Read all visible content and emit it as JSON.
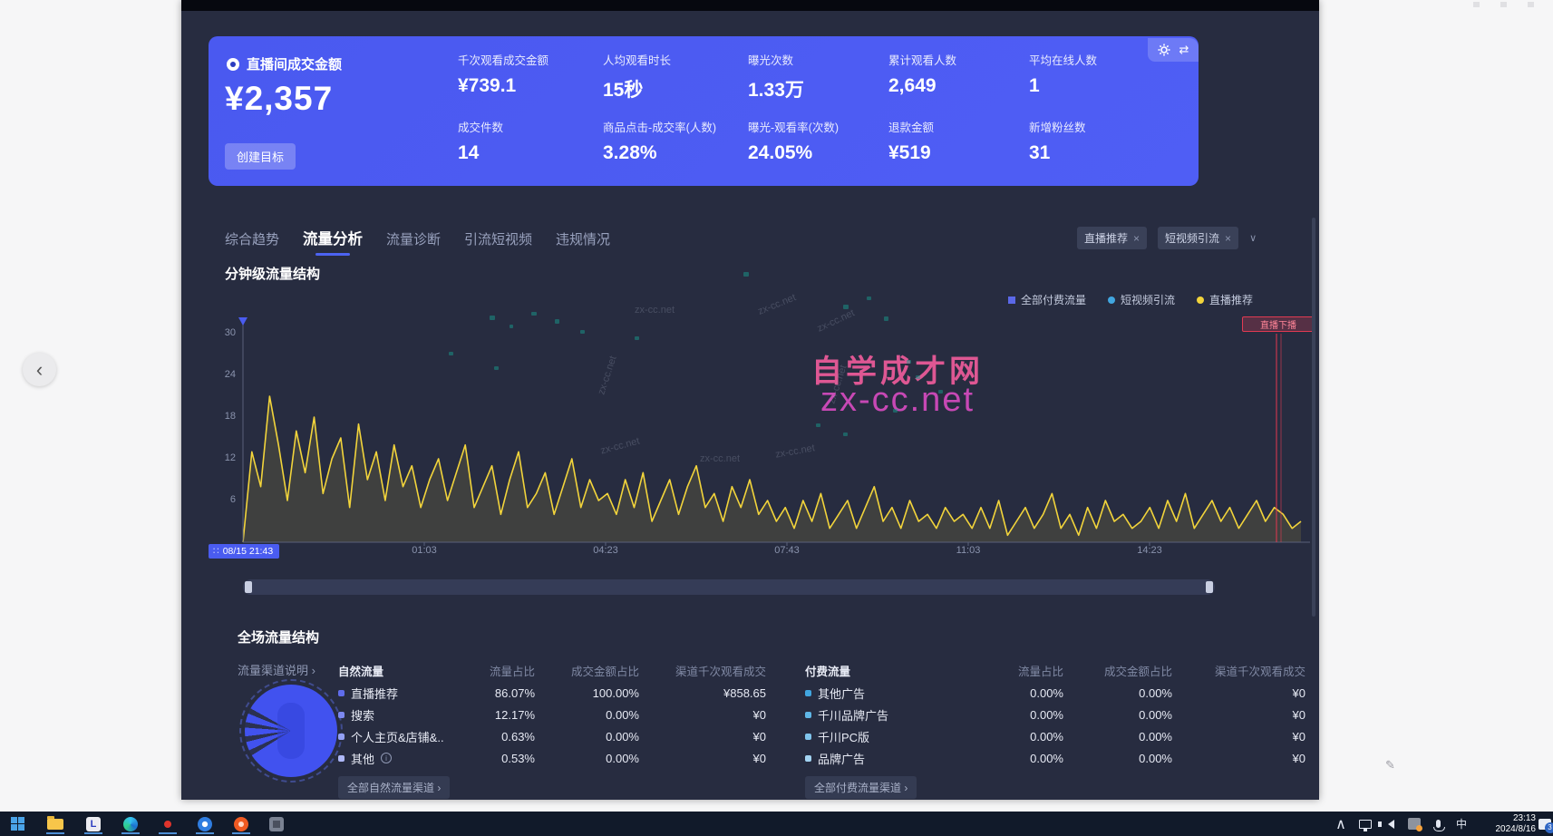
{
  "ui": {
    "chevron_right": "›",
    "chevron_down": "∨",
    "chevron_up": "∧",
    "close": "×",
    "back": "‹",
    "start_badge_icon": "∷"
  },
  "kpi": {
    "title": "直播间成交金额",
    "value": "¥2,357",
    "goal_button": "创建目标",
    "metrics": [
      {
        "label": "千次观看成交金额",
        "value": "¥739.1"
      },
      {
        "label": "人均观看时长",
        "value": "15秒"
      },
      {
        "label": "曝光次数",
        "value": "1.33万"
      },
      {
        "label": "累计观看人数",
        "value": "2,649"
      },
      {
        "label": "平均在线人数",
        "value": "1"
      },
      {
        "label": "成交件数",
        "value": "14"
      },
      {
        "label": "商品点击-成交率(人数)",
        "value": "3.28%"
      },
      {
        "label": "曝光-观看率(次数)",
        "value": "24.05%"
      },
      {
        "label": "退款金额",
        "value": "¥519"
      },
      {
        "label": "新增粉丝数",
        "value": "31"
      }
    ]
  },
  "tabs": [
    {
      "label": "综合趋势",
      "active": false
    },
    {
      "label": "流量分析",
      "active": true
    },
    {
      "label": "流量诊断",
      "active": false
    },
    {
      "label": "引流短视频",
      "active": false
    },
    {
      "label": "违规情况",
      "active": false
    }
  ],
  "filters": {
    "tag1": "直播推荐",
    "tag2": "短视频引流"
  },
  "minute_section": {
    "title": "分钟级流量结构"
  },
  "chart_data": {
    "type": "line",
    "title": "分钟级流量结构",
    "x_ticks": [
      "08/15 21:43",
      "01:03",
      "04:23",
      "07:43",
      "11:03",
      "14:23"
    ],
    "y_ticks": [
      30,
      24,
      18,
      12,
      6
    ],
    "ylim": [
      0,
      30
    ],
    "grid": false,
    "legend_position": "top-right",
    "legend": [
      {
        "name": "全部付费流量",
        "color": "#5b68e8",
        "marker": "square"
      },
      {
        "name": "短视频引流",
        "color": "#41a6e0",
        "marker": "circle"
      },
      {
        "name": "直播推荐",
        "color": "#f2d43b",
        "marker": "circle"
      }
    ],
    "series": [
      {
        "name": "直播推荐",
        "color": "#f2d43b",
        "values": [
          0,
          13,
          8,
          21,
          14,
          6,
          16,
          10,
          18,
          7,
          12,
          15,
          5,
          17,
          9,
          13,
          6,
          14,
          8,
          11,
          5,
          9,
          12,
          6,
          10,
          14,
          5,
          8,
          11,
          4,
          9,
          13,
          5,
          7,
          10,
          4,
          8,
          12,
          5,
          9,
          6,
          7,
          4,
          9,
          5,
          10,
          3,
          6,
          9,
          4,
          8,
          11,
          5,
          7,
          3,
          8,
          5,
          9,
          4,
          6,
          3,
          5,
          2,
          6,
          3,
          7,
          2,
          4,
          6,
          2,
          5,
          8,
          3,
          5,
          2,
          6,
          3,
          4,
          2,
          5,
          3,
          4,
          2,
          5,
          2,
          6,
          1,
          3,
          5,
          2,
          4,
          7,
          2,
          4,
          1,
          5,
          2,
          6,
          3,
          4,
          2,
          3,
          5,
          2,
          6,
          3,
          7,
          2,
          4,
          6,
          3,
          5,
          2,
          4,
          6,
          3,
          5,
          4,
          2,
          3
        ]
      },
      {
        "name": "短视频引流",
        "color": "#41a6e0",
        "values": [],
        "note": "flat at 0, not visible"
      },
      {
        "name": "全部付费流量",
        "color": "#5b68e8",
        "values": [],
        "note": "flat at 0, not visible"
      }
    ],
    "end_marker": {
      "label": "直播下播",
      "color": "#e23a52",
      "x_position": "near end of timeline"
    }
  },
  "full_structure": {
    "title": "全场流量结构",
    "channel_help": "流量渠道说明",
    "natural": {
      "group": "自然流量",
      "columns": [
        "流量占比",
        "成交金额占比",
        "渠道千次观看成交"
      ],
      "rows": [
        {
          "name": "直播推荐",
          "share": "86.07%",
          "gmv_share": "100.00%",
          "gpm": "¥858.65"
        },
        {
          "name": "搜索",
          "share": "12.17%",
          "gmv_share": "0.00%",
          "gpm": "¥0"
        },
        {
          "name": "个人主页&店铺&..",
          "share": "0.63%",
          "gmv_share": "0.00%",
          "gpm": "¥0"
        },
        {
          "name": "其他",
          "share": "0.53%",
          "gmv_share": "0.00%",
          "gpm": "¥0"
        }
      ],
      "link": "全部自然流量渠道"
    },
    "paid": {
      "group": "付费流量",
      "columns": [
        "流量占比",
        "成交金额占比",
        "渠道千次观看成交"
      ],
      "rows": [
        {
          "name": "其他广告",
          "share": "0.00%",
          "gmv_share": "0.00%",
          "gpm": "¥0"
        },
        {
          "name": "千川品牌广告",
          "share": "0.00%",
          "gmv_share": "0.00%",
          "gpm": "¥0"
        },
        {
          "name": "千川PC版",
          "share": "0.00%",
          "gmv_share": "0.00%",
          "gpm": "¥0"
        },
        {
          "name": "品牌广告",
          "share": "0.00%",
          "gmv_share": "0.00%",
          "gpm": "¥0"
        }
      ],
      "link": "全部付费流量渠道"
    }
  },
  "watermark": {
    "line1": "自学成才网",
    "line2": "zx-cc.net",
    "small": "zx-cc.net"
  },
  "taskbar": {
    "time": "23:13",
    "date": "2024/8/16",
    "ime": "中",
    "notification_count": "3"
  }
}
